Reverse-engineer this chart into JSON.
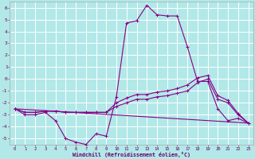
{
  "xlabel": "Windchill (Refroidissement éolien,°C)",
  "bg_color": "#b2e8e8",
  "grid_color": "#ffffff",
  "line_color": "#880088",
  "xlim": [
    -0.5,
    23.5
  ],
  "ylim": [
    -5.5,
    6.5
  ],
  "xtick_vals": [
    0,
    1,
    2,
    3,
    4,
    5,
    6,
    7,
    8,
    9,
    10,
    11,
    12,
    13,
    14,
    15,
    16,
    17,
    18,
    19,
    20,
    21,
    22,
    23
  ],
  "xtick_labels": [
    "0",
    "1",
    "2",
    "3",
    "4",
    "5",
    "6",
    "7",
    "8",
    "9",
    "10",
    "11",
    "12",
    "13",
    "14",
    "15",
    "16",
    "17",
    "18",
    "19",
    "20",
    "21",
    "22",
    "23"
  ],
  "ytick_vals": [
    -5,
    -4,
    -3,
    -2,
    -1,
    0,
    1,
    2,
    3,
    4,
    5,
    6
  ],
  "ytick_labels": [
    "-5",
    "-4",
    "-3",
    "-2",
    "-1",
    "0",
    "1",
    "2",
    "3",
    "4",
    "5",
    "6"
  ],
  "series1_x": [
    0,
    1,
    2,
    3,
    4,
    5,
    6,
    7,
    8,
    9,
    10,
    11,
    12,
    13,
    14,
    15,
    16,
    17,
    18,
    19,
    20,
    21,
    22,
    23
  ],
  "series1_y": [
    -2.5,
    -3.0,
    -3.0,
    -2.8,
    -3.5,
    -5.0,
    -5.3,
    -5.5,
    -4.6,
    -4.8,
    -1.5,
    4.7,
    4.9,
    6.2,
    5.4,
    5.3,
    5.3,
    2.7,
    -0.2,
    -0.2,
    -2.5,
    -3.5,
    -3.3,
    -3.7
  ],
  "series2_x": [
    0,
    1,
    2,
    3,
    4,
    5,
    6,
    7,
    8,
    9,
    10,
    11,
    12,
    13,
    14,
    15,
    16,
    17,
    18,
    19,
    20,
    21,
    22,
    23
  ],
  "series2_y": [
    -2.5,
    -2.8,
    -2.8,
    -2.7,
    -2.7,
    -2.8,
    -2.8,
    -2.8,
    -2.8,
    -2.8,
    -2.3,
    -2.0,
    -1.7,
    -1.7,
    -1.5,
    -1.4,
    -1.2,
    -1.0,
    -0.3,
    -0.0,
    -1.7,
    -2.0,
    -3.0,
    -3.7
  ],
  "series3_x": [
    0,
    1,
    2,
    3,
    4,
    5,
    6,
    7,
    8,
    9,
    10,
    11,
    12,
    13,
    14,
    15,
    16,
    17,
    18,
    19,
    20,
    21,
    22,
    23
  ],
  "series3_y": [
    -2.5,
    -2.8,
    -2.8,
    -2.7,
    -2.7,
    -2.8,
    -2.8,
    -2.8,
    -2.8,
    -2.8,
    -2.0,
    -1.6,
    -1.3,
    -1.3,
    -1.1,
    -1.0,
    -0.8,
    -0.5,
    0.1,
    0.3,
    -1.4,
    -1.8,
    -2.9,
    -3.7
  ],
  "series4_x": [
    0,
    23
  ],
  "series4_y": [
    -2.5,
    -3.7
  ]
}
